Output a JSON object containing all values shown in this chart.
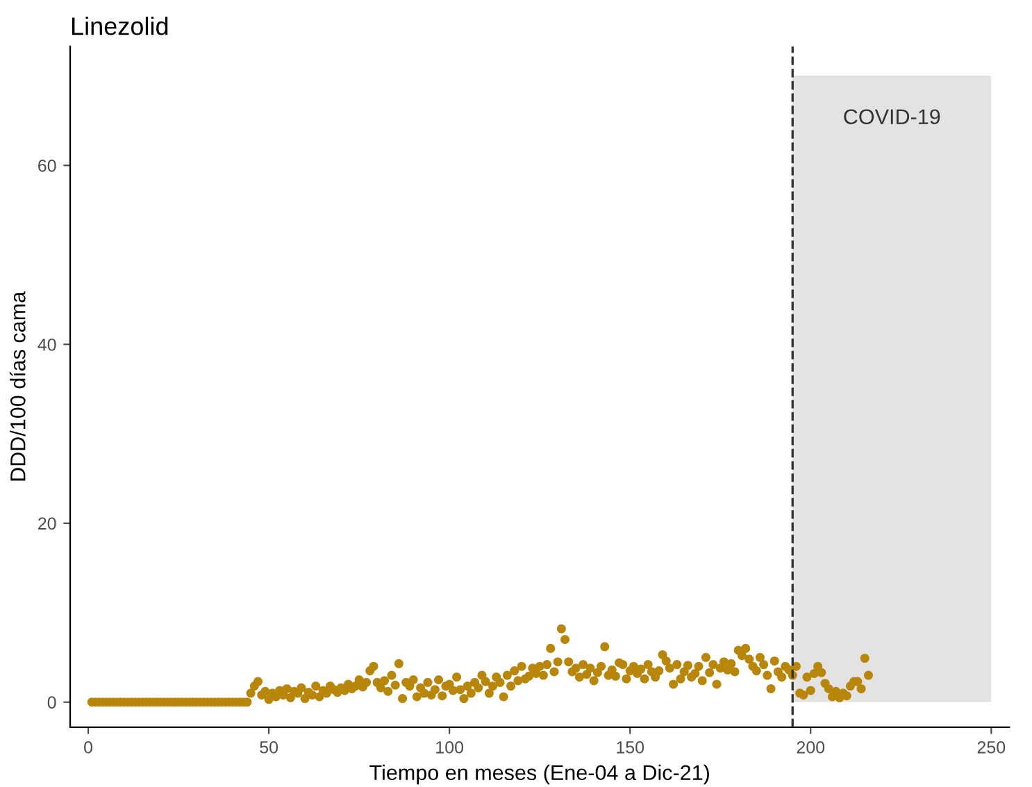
{
  "chart_data": {
    "type": "scatter",
    "title": "Linezolid",
    "xlabel": "Tiempo en meses (Ene-04 a Dic-21)",
    "ylabel": "DDD/100 días cama",
    "x": [
      1,
      2,
      3,
      4,
      5,
      6,
      7,
      8,
      9,
      10,
      11,
      12,
      13,
      14,
      15,
      16,
      17,
      18,
      19,
      20,
      21,
      22,
      23,
      24,
      25,
      26,
      27,
      28,
      29,
      30,
      31,
      32,
      33,
      34,
      35,
      36,
      37,
      38,
      39,
      40,
      41,
      42,
      43,
      44,
      45,
      46,
      47,
      48,
      49,
      50,
      51,
      52,
      53,
      54,
      55,
      56,
      57,
      58,
      59,
      60,
      61,
      62,
      63,
      64,
      65,
      66,
      67,
      68,
      69,
      70,
      71,
      72,
      73,
      74,
      75,
      76,
      77,
      78,
      79,
      80,
      81,
      82,
      83,
      84,
      85,
      86,
      87,
      88,
      89,
      90,
      91,
      92,
      93,
      94,
      95,
      96,
      97,
      98,
      99,
      100,
      101,
      102,
      103,
      104,
      105,
      106,
      107,
      108,
      109,
      110,
      111,
      112,
      113,
      114,
      115,
      116,
      117,
      118,
      119,
      120,
      121,
      122,
      123,
      124,
      125,
      126,
      127,
      128,
      129,
      130,
      131,
      132,
      133,
      134,
      135,
      136,
      137,
      138,
      139,
      140,
      141,
      142,
      143,
      144,
      145,
      146,
      147,
      148,
      149,
      150,
      151,
      152,
      153,
      154,
      155,
      156,
      157,
      158,
      159,
      160,
      161,
      162,
      163,
      164,
      165,
      166,
      167,
      168,
      169,
      170,
      171,
      172,
      173,
      174,
      175,
      176,
      177,
      178,
      179,
      180,
      181,
      182,
      183,
      184,
      185,
      186,
      187,
      188,
      189,
      190,
      191,
      192,
      193,
      194,
      195,
      196,
      197,
      198,
      199,
      200,
      201,
      202,
      203,
      204,
      205,
      206,
      207,
      208,
      209,
      210,
      211,
      212,
      213,
      214,
      215,
      216
    ],
    "series": [
      {
        "color": "#b8860b",
        "values": [
          0,
          0,
          0,
          0,
          0,
          0,
          0,
          0,
          0,
          0,
          0,
          0,
          0,
          0,
          0,
          0,
          0,
          0,
          0,
          0,
          0,
          0,
          0,
          0,
          0,
          0,
          0,
          0,
          0,
          0,
          0,
          0,
          0,
          0,
          0,
          0,
          0,
          0,
          0,
          0,
          0,
          0,
          0,
          0,
          1.0,
          1.8,
          2.3,
          0.8,
          1.2,
          0.3,
          1.0,
          0.6,
          1.3,
          0.8,
          1.5,
          0.5,
          1.2,
          1.0,
          1.6,
          0.4,
          1.1,
          0.8,
          1.8,
          0.6,
          1.3,
          1.0,
          1.8,
          1.4,
          1.1,
          1.6,
          1.3,
          2.0,
          1.5,
          1.8,
          2.5,
          1.7,
          2.2,
          3.5,
          4.0,
          2.2,
          1.6,
          2.4,
          1.2,
          3.0,
          1.9,
          4.3,
          0.4,
          2.2,
          1.8,
          2.5,
          0.6,
          1.6,
          1.0,
          2.2,
          0.8,
          1.4,
          2.5,
          0.7,
          1.8,
          2.0,
          1.3,
          2.8,
          1.4,
          0.4,
          1.8,
          1.0,
          2.2,
          1.6,
          3.0,
          2.3,
          1.0,
          1.8,
          2.8,
          2.2,
          0.6,
          3.0,
          1.8,
          3.5,
          2.4,
          4.0,
          2.6,
          2.9,
          3.8,
          3.2,
          4.0,
          3.0,
          4.2,
          6.0,
          3.4,
          4.5,
          8.2,
          7.0,
          4.5,
          3.4,
          3.8,
          2.8,
          4.2,
          3.1,
          3.8,
          2.4,
          3.3,
          4.0,
          6.2,
          3.0,
          3.6,
          2.9,
          4.4,
          4.2,
          2.6,
          3.5,
          4.0,
          3.2,
          3.7,
          2.6,
          4.2,
          3.4,
          2.8,
          3.5,
          5.3,
          4.6,
          3.8,
          2.0,
          4.2,
          2.6,
          3.4,
          4.1,
          2.8,
          3.2,
          4.0,
          2.4,
          5.0,
          3.3,
          4.2,
          2.0,
          3.8,
          4.5,
          3.6,
          4.3,
          3.4,
          5.8,
          5.2,
          6.0,
          4.8,
          4.0,
          3.5,
          5.0,
          4.2,
          3.0,
          1.5,
          4.6,
          3.4,
          2.8,
          4.0,
          3.6,
          3.0,
          4.0,
          1.0,
          0.8,
          2.8,
          1.3,
          3.2,
          4.0,
          3.3,
          2.1,
          1.5,
          0.6,
          1.2,
          0.5,
          1.0,
          0.7,
          1.8,
          2.3,
          2.3,
          1.5,
          4.9,
          3.0
        ]
      }
    ],
    "xlim": [
      -5,
      255
    ],
    "ylim": [
      -2.8,
      73.3
    ],
    "xticks": [
      0,
      50,
      100,
      150,
      200,
      250
    ],
    "yticks": [
      0,
      20,
      40,
      60
    ],
    "ref_lines": [
      {
        "axis": "x",
        "value": 195,
        "line_style": "dashed",
        "color": "#333333"
      }
    ],
    "bands": [
      {
        "axis": "x",
        "from": 195,
        "to": 250,
        "label": "COVID-19",
        "color": "#e3e3e3"
      }
    ],
    "marker": "circle",
    "grid": false,
    "legend": false
  }
}
